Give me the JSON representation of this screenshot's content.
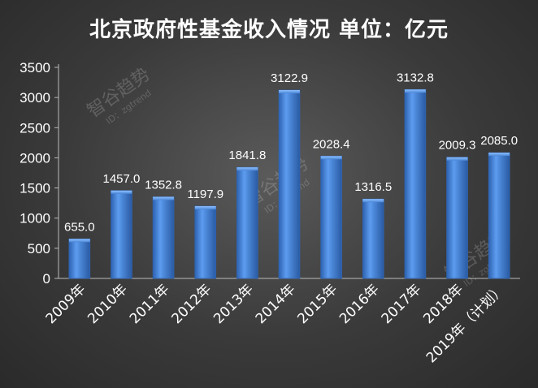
{
  "chart_data": {
    "type": "bar",
    "title": "北京政府性基金收入情况 单位：亿元",
    "categories": [
      "2009年",
      "2010年",
      "2011年",
      "2012年",
      "2013年",
      "2014年",
      "2015年",
      "2016年",
      "2017年",
      "2018年",
      "2019年（计划）"
    ],
    "values": [
      655.0,
      1457.0,
      1352.8,
      1197.9,
      1841.8,
      3122.9,
      2028.4,
      1316.5,
      3132.8,
      2009.3,
      2085.0
    ],
    "data_labels": [
      "655.0",
      "1457.0",
      "1352.8",
      "1197.9",
      "1841.8",
      "3122.9",
      "2028.4",
      "1316.5",
      "3132.8",
      "2009.3",
      "2085.0"
    ],
    "ylim": [
      0,
      3500
    ],
    "yticks": [
      0,
      500,
      1000,
      1500,
      2000,
      2500,
      3000,
      3500
    ],
    "grid": false,
    "bar_color": "#4a86d6",
    "bar_edge_color": "#2f66b3"
  },
  "watermarks": [
    {
      "main": "智谷趋势",
      "sub": "ID：zgtrend"
    },
    {
      "main": "智谷趋势",
      "sub": "ID：zgtrend"
    },
    {
      "main": "智谷趋势",
      "sub": "ID：zgtrend"
    }
  ]
}
